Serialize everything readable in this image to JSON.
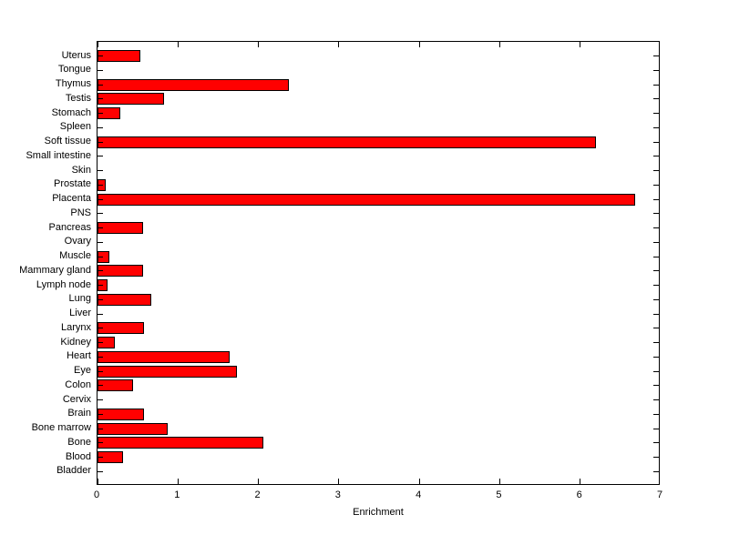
{
  "figure": {
    "background_color": "#ffffff",
    "axis_color": "#000000",
    "text_color": "#000000"
  },
  "chart_data": {
    "type": "bar",
    "orientation": "horizontal",
    "title": "",
    "xlabel": "Enrichment",
    "ylabel": "",
    "xlim": [
      0,
      7
    ],
    "x_ticks": [
      0,
      1,
      2,
      3,
      4,
      5,
      6,
      7
    ],
    "grid": false,
    "legend": null,
    "bar_color": "#ff0000",
    "bar_edge_color": "#000000",
    "categories": [
      "Uterus",
      "Tongue",
      "Thymus",
      "Testis",
      "Stomach",
      "Spleen",
      "Soft tissue",
      "Small intestine",
      "Skin",
      "Prostate",
      "Placenta",
      "PNS",
      "Pancreas",
      "Ovary",
      "Muscle",
      "Mammary gland",
      "Lymph node",
      "Lung",
      "Liver",
      "Larynx",
      "Kidney",
      "Heart",
      "Eye",
      "Colon",
      "Cervix",
      "Brain",
      "Bone marrow",
      "Bone",
      "Blood",
      "Bladder"
    ],
    "values": [
      0.53,
      0,
      2.39,
      0.83,
      0.28,
      0,
      6.22,
      0,
      0,
      0.1,
      6.7,
      0,
      0.57,
      0,
      0.15,
      0.57,
      0.12,
      0.67,
      0,
      0.58,
      0.22,
      1.65,
      1.74,
      0.44,
      0,
      0.58,
      0.88,
      2.07,
      0.32,
      0
    ]
  }
}
